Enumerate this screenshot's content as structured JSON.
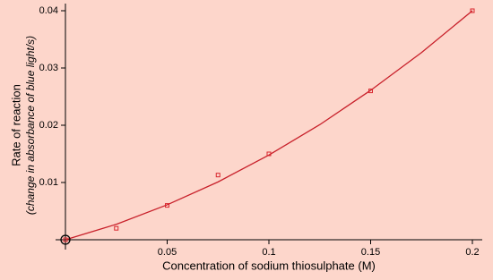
{
  "chart_data": {
    "type": "scatter",
    "x_label": "Concentration of sodium thiosulphate (M)",
    "y_label": "Rate of reaction",
    "y_label_sub": "(change in absorbance of blue light/s)",
    "x": [
      0,
      0.025,
      0.05,
      0.075,
      0.1,
      0.15,
      0.2
    ],
    "values": [
      0,
      0.002,
      0.006,
      0.0113,
      0.015,
      0.026,
      0.04
    ],
    "color": "#d9262e",
    "fit": {
      "color": "#c8202a",
      "x": [
        0,
        0.025,
        0.05,
        0.075,
        0.1,
        0.125,
        0.15,
        0.175,
        0.2
      ],
      "values": [
        0,
        0.0027,
        0.0061,
        0.0101,
        0.0148,
        0.0201,
        0.0261,
        0.0327,
        0.04
      ]
    },
    "xlim": [
      0,
      0.2
    ],
    "ylim": [
      0,
      0.04
    ],
    "xticks": [
      0.05,
      0.1,
      0.15,
      0.2
    ],
    "yticks": [
      0.01,
      0.02,
      0.03,
      0.04
    ],
    "grid": false
  }
}
